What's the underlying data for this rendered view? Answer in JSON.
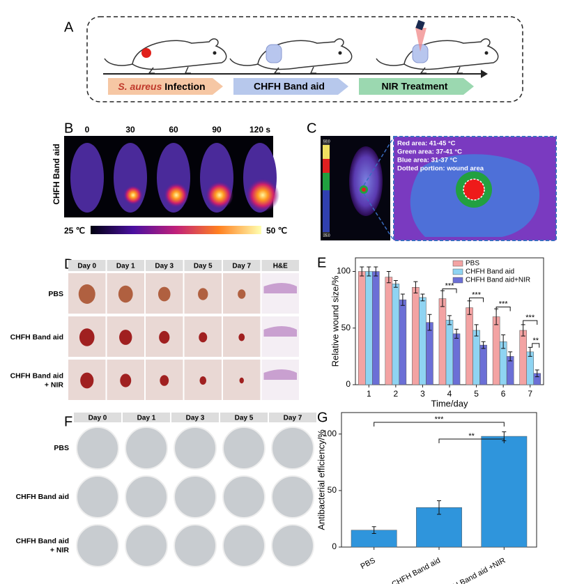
{
  "panel_a": {
    "label": "A",
    "step1_italic": "S. aureus",
    "step1": "Infection",
    "step2": "CHFH Band aid",
    "step3": "NIR Treatment"
  },
  "panel_b": {
    "label": "B",
    "row_label": "CHFH Band aid",
    "times": [
      "0",
      "30",
      "60",
      "90",
      "120 s"
    ],
    "scale_min": "25 ℃",
    "scale_max": "50 ℃"
  },
  "panel_c": {
    "label": "C",
    "scale_top": "50.0",
    "scale_bottom": "25.0",
    "legend": [
      "Red area: 41-45 °C",
      "Green area: 37-41 °C",
      "Blue area: 31-37 °C",
      "Dotted portion:  wound area"
    ]
  },
  "panel_d": {
    "label": "D",
    "columns": [
      "Day 0",
      "Day 1",
      "Day 3",
      "Day 5",
      "Day 7",
      "H&E"
    ],
    "rows": [
      [
        "PBS"
      ],
      [
        "CHFH Band aid"
      ],
      [
        "CHFH Band aid",
        "+ NIR"
      ]
    ]
  },
  "panel_f": {
    "label": "F",
    "columns": [
      "Day 0",
      "Day 1",
      "Day 3",
      "Day 5",
      "Day 7"
    ],
    "rows": [
      [
        "PBS"
      ],
      [
        "CHFH Band aid"
      ],
      [
        "CHFH Band aid",
        "+ NIR"
      ]
    ]
  },
  "chart_data": [
    {
      "type": "bar",
      "panel": "E",
      "xlabel": "Time/day",
      "ylabel": "Relative wound size/%",
      "categories": [
        "1",
        "2",
        "3",
        "4",
        "5",
        "6",
        "7"
      ],
      "series": [
        {
          "name": "PBS",
          "color": "#f3a3a3",
          "values": [
            100,
            95,
            86,
            76,
            68,
            60,
            48
          ],
          "errors": [
            4,
            5,
            5,
            7,
            6,
            7,
            5
          ]
        },
        {
          "name": "CHFH Band aid",
          "color": "#8fd4f2",
          "values": [
            100,
            89,
            77,
            57,
            48,
            38,
            29
          ],
          "errors": [
            4,
            3,
            3,
            4,
            5,
            6,
            4
          ]
        },
        {
          "name": "CHFH Band aid+NIR",
          "color": "#6b6fd6",
          "values": [
            100,
            75,
            55,
            45,
            35,
            25,
            10
          ],
          "errors": [
            4,
            5,
            7,
            4,
            3,
            4,
            3
          ]
        }
      ],
      "ylim": [
        0,
        112
      ],
      "yticks": [
        0,
        50,
        100
      ],
      "legend": "top-right",
      "annotations": [
        "***",
        "***",
        "***",
        "***",
        "**"
      ]
    },
    {
      "type": "bar",
      "panel": "G",
      "ylabel": "Antibacterial efficiency/%",
      "categories": [
        "PBS",
        "CHFH Band aid",
        "CHFH Band aid +NIR"
      ],
      "series": [
        {
          "color": "#2f95dc",
          "values": [
            15,
            35,
            98
          ],
          "errors": [
            3,
            6,
            4
          ]
        }
      ],
      "ylim": [
        0,
        119
      ],
      "yticks": [
        0,
        50,
        100
      ],
      "annotations": [
        "***",
        "**"
      ]
    }
  ]
}
